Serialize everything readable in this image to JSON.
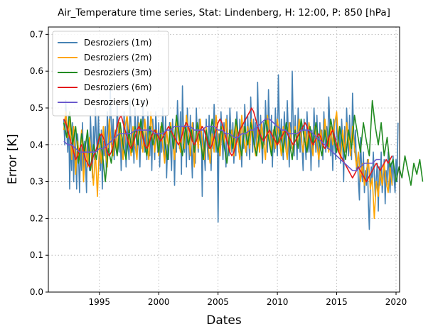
{
  "chart_data": {
    "type": "line",
    "title": "Air_Temperature time series, Stat: Lindenberg, H: 12:00, P: 850 [hPa]",
    "xlabel": "Dates",
    "ylabel": "Error [K]",
    "xlim": [
      1990.7,
      2020.3
    ],
    "ylim": [
      0.0,
      0.72
    ],
    "x_ticks": [
      1995,
      2000,
      2005,
      2010,
      2015,
      2020
    ],
    "y_ticks": [
      0.0,
      0.1,
      0.2,
      0.3,
      0.4,
      0.5,
      0.6,
      0.7
    ],
    "y_tick_labels": [
      "0.0",
      "0.1",
      "0.2",
      "0.3",
      "0.4",
      "0.5",
      "0.6",
      "0.7"
    ],
    "grid": true,
    "legend_position": "top-left",
    "series": [
      {
        "name": "Desroziers (1m)",
        "color": "#4682b4",
        "x_start": 1992.0,
        "x_step": 0.0833333,
        "values": [
          0.47,
          0.4,
          0.52,
          0.44,
          0.38,
          0.48,
          0.28,
          0.42,
          0.33,
          0.46,
          0.3,
          0.44,
          0.38,
          0.28,
          0.43,
          0.36,
          0.27,
          0.4,
          0.33,
          0.46,
          0.3,
          0.41,
          0.35,
          0.27,
          0.44,
          0.37,
          0.33,
          0.48,
          0.4,
          0.31,
          0.45,
          0.36,
          0.5,
          0.42,
          0.38,
          0.48,
          0.4,
          0.33,
          0.44,
          0.28,
          0.41,
          0.37,
          0.45,
          0.33,
          0.49,
          0.42,
          0.38,
          0.55,
          0.46,
          0.4,
          0.47,
          0.36,
          0.43,
          0.39,
          0.51,
          0.44,
          0.38,
          0.45,
          0.33,
          0.42,
          0.37,
          0.49,
          0.42,
          0.34,
          0.47,
          0.4,
          0.36,
          0.52,
          0.45,
          0.38,
          0.43,
          0.35,
          0.5,
          0.44,
          0.38,
          0.48,
          0.4,
          0.34,
          0.46,
          0.39,
          0.52,
          0.45,
          0.38,
          0.44,
          0.36,
          0.49,
          0.42,
          0.37,
          0.45,
          0.33,
          0.47,
          0.41,
          0.36,
          0.49,
          0.43,
          0.38,
          0.46,
          0.34,
          0.44,
          0.38,
          0.5,
          0.43,
          0.37,
          0.48,
          0.31,
          0.4,
          0.36,
          0.46,
          0.39,
          0.33,
          0.47,
          0.41,
          0.29,
          0.44,
          0.38,
          0.52,
          0.45,
          0.39,
          0.49,
          0.32,
          0.56,
          0.44,
          0.38,
          0.46,
          0.34,
          0.5,
          0.42,
          0.36,
          0.48,
          0.39,
          0.31,
          0.46,
          0.4,
          0.35,
          0.5,
          0.43,
          0.38,
          0.47,
          0.41,
          0.45,
          0.26,
          0.44,
          0.38,
          0.33,
          0.47,
          0.4,
          0.36,
          0.48,
          0.42,
          0.33,
          0.45,
          0.39,
          0.51,
          0.44,
          0.38,
          0.46,
          0.19,
          0.43,
          0.37,
          0.49,
          0.42,
          0.36,
          0.46,
          0.4,
          0.34,
          0.48,
          0.41,
          0.37,
          0.5,
          0.44,
          0.38,
          0.46,
          0.35,
          0.42,
          0.37,
          0.49,
          0.43,
          0.38,
          0.47,
          0.4,
          0.34,
          0.45,
          0.39,
          0.51,
          0.44,
          0.37,
          0.48,
          0.41,
          0.36,
          0.53,
          0.45,
          0.38,
          0.47,
          0.4,
          0.46,
          0.37,
          0.57,
          0.44,
          0.38,
          0.48,
          0.41,
          0.35,
          0.46,
          0.4,
          0.52,
          0.44,
          0.38,
          0.55,
          0.45,
          0.39,
          0.48,
          0.34,
          0.44,
          0.38,
          0.5,
          0.43,
          0.37,
          0.59,
          0.46,
          0.39,
          0.47,
          0.4,
          0.36,
          0.49,
          0.43,
          0.38,
          0.52,
          0.44,
          0.34,
          0.46,
          0.39,
          0.6,
          0.45,
          0.37,
          0.48,
          0.42,
          0.36,
          0.5,
          0.43,
          0.38,
          0.46,
          0.39,
          0.33,
          0.47,
          0.41,
          0.36,
          0.49,
          0.42,
          0.38,
          0.45,
          0.33,
          0.44,
          0.37,
          0.5,
          0.43,
          0.38,
          0.48,
          0.4,
          0.34,
          0.46,
          0.39,
          0.44,
          0.36,
          0.49,
          0.42,
          0.38,
          0.45,
          0.4,
          0.53,
          0.46,
          0.37,
          0.43,
          0.33,
          0.47,
          0.4,
          0.36,
          0.48,
          0.42,
          0.38,
          0.44,
          0.35,
          0.47,
          0.41,
          0.3,
          0.45,
          0.38,
          0.5,
          0.43,
          0.37,
          0.48,
          0.41,
          0.36,
          0.54,
          0.45,
          0.38,
          0.44,
          0.33,
          0.36,
          0.3,
          0.25,
          0.42,
          0.35,
          0.3,
          0.38,
          0.27,
          0.33,
          0.29,
          0.36,
          0.24,
          0.17,
          0.28,
          0.34,
          0.3,
          0.38,
          0.32,
          0.26,
          0.31,
          0.35,
          0.22,
          0.34,
          0.29,
          0.38,
          0.27,
          0.31,
          0.36,
          0.24,
          0.33,
          0.29,
          0.38,
          0.32,
          0.27,
          0.35,
          0.29,
          0.37,
          0.31,
          0.27,
          0.36,
          0.3,
          0.46
        ]
      },
      {
        "name": "Desroziers (2m)",
        "color": "#ffa500",
        "x_start": 1992.0,
        "x_step": 0.1666667,
        "values": [
          0.44,
          0.49,
          0.42,
          0.47,
          0.36,
          0.45,
          0.32,
          0.41,
          0.36,
          0.44,
          0.3,
          0.4,
          0.34,
          0.42,
          0.37,
          0.29,
          0.38,
          0.26,
          0.4,
          0.35,
          0.45,
          0.38,
          0.34,
          0.47,
          0.4,
          0.37,
          0.44,
          0.38,
          0.46,
          0.41,
          0.36,
          0.45,
          0.48,
          0.42,
          0.37,
          0.45,
          0.4,
          0.36,
          0.46,
          0.42,
          0.38,
          0.47,
          0.41,
          0.36,
          0.49,
          0.43,
          0.38,
          0.44,
          0.37,
          0.45,
          0.4,
          0.35,
          0.44,
          0.39,
          0.46,
          0.41,
          0.36,
          0.47,
          0.42,
          0.38,
          0.45,
          0.39,
          0.48,
          0.43,
          0.37,
          0.46,
          0.34,
          0.44,
          0.39,
          0.47,
          0.41,
          0.36,
          0.45,
          0.4,
          0.35,
          0.43,
          0.38,
          0.48,
          0.42,
          0.37,
          0.45,
          0.4,
          0.47,
          0.42,
          0.38,
          0.44,
          0.37,
          0.46,
          0.41,
          0.36,
          0.48,
          0.42,
          0.38,
          0.45,
          0.39,
          0.47,
          0.41,
          0.37,
          0.44,
          0.38,
          0.46,
          0.41,
          0.36,
          0.48,
          0.43,
          0.38,
          0.44,
          0.39,
          0.47,
          0.42,
          0.37,
          0.45,
          0.4,
          0.36,
          0.46,
          0.41,
          0.38,
          0.45,
          0.4,
          0.47,
          0.42,
          0.38,
          0.44,
          0.39,
          0.46,
          0.41,
          0.37,
          0.45,
          0.4,
          0.36,
          0.44,
          0.39,
          0.47,
          0.42,
          0.38,
          0.45,
          0.4,
          0.46,
          0.49,
          0.4,
          0.36,
          0.44,
          0.38,
          0.46,
          0.42,
          0.37,
          0.45,
          0.39,
          0.34,
          0.38,
          0.3,
          0.35,
          0.29,
          0.33,
          0.36,
          0.28,
          0.31,
          0.2,
          0.3,
          0.26,
          0.33,
          0.29,
          0.35,
          0.3,
          0.27,
          0.34,
          0.29
        ]
      },
      {
        "name": "Desroziers (3m)",
        "color": "#228b22",
        "x_start": 1992.0,
        "x_step": 0.25,
        "values": [
          0.46,
          0.42,
          0.49,
          0.4,
          0.45,
          0.35,
          0.43,
          0.38,
          0.44,
          0.33,
          0.4,
          0.36,
          0.43,
          0.38,
          0.3,
          0.39,
          0.35,
          0.42,
          0.37,
          0.46,
          0.4,
          0.36,
          0.44,
          0.38,
          0.45,
          0.4,
          0.47,
          0.41,
          0.37,
          0.45,
          0.4,
          0.44,
          0.38,
          0.46,
          0.41,
          0.36,
          0.45,
          0.39,
          0.48,
          0.42,
          0.37,
          0.45,
          0.4,
          0.44,
          0.38,
          0.46,
          0.41,
          0.36,
          0.44,
          0.39,
          0.47,
          0.42,
          0.38,
          0.45,
          0.4,
          0.35,
          0.44,
          0.39,
          0.47,
          0.42,
          0.37,
          0.45,
          0.4,
          0.46,
          0.41,
          0.37,
          0.44,
          0.39,
          0.47,
          0.42,
          0.37,
          0.45,
          0.4,
          0.44,
          0.38,
          0.46,
          0.41,
          0.36,
          0.44,
          0.39,
          0.47,
          0.42,
          0.38,
          0.45,
          0.4,
          0.46,
          0.41,
          0.37,
          0.44,
          0.39,
          0.47,
          0.42,
          0.38,
          0.45,
          0.4,
          0.36,
          0.44,
          0.39,
          0.48,
          0.43,
          0.38,
          0.46,
          0.41,
          0.37,
          0.52,
          0.45,
          0.4,
          0.46,
          0.37,
          0.42,
          0.34,
          0.36,
          0.3,
          0.34,
          0.31,
          0.37,
          0.33,
          0.29,
          0.35,
          0.32,
          0.36,
          0.3
        ]
      },
      {
        "name": "Desroziers (6m)",
        "color": "#e31a1c",
        "x_start": 1992.0,
        "x_step": 0.1666667,
        "values": [
          0.47,
          0.46,
          0.44,
          0.42,
          0.4,
          0.38,
          0.36,
          0.37,
          0.39,
          0.4,
          0.38,
          0.36,
          0.35,
          0.34,
          0.35,
          0.37,
          0.38,
          0.4,
          0.42,
          0.43,
          0.42,
          0.4,
          0.38,
          0.37,
          0.38,
          0.4,
          0.43,
          0.45,
          0.47,
          0.48,
          0.46,
          0.44,
          0.42,
          0.4,
          0.39,
          0.4,
          0.42,
          0.44,
          0.45,
          0.44,
          0.42,
          0.4,
          0.39,
          0.4,
          0.42,
          0.43,
          0.44,
          0.43,
          0.42,
          0.41,
          0.42,
          0.43,
          0.44,
          0.45,
          0.44,
          0.43,
          0.42,
          0.41,
          0.4,
          0.41,
          0.43,
          0.45,
          0.46,
          0.45,
          0.43,
          0.41,
          0.4,
          0.41,
          0.43,
          0.44,
          0.45,
          0.44,
          0.42,
          0.4,
          0.39,
          0.4,
          0.42,
          0.44,
          0.46,
          0.47,
          0.46,
          0.44,
          0.42,
          0.4,
          0.38,
          0.37,
          0.38,
          0.4,
          0.42,
          0.44,
          0.45,
          0.46,
          0.47,
          0.48,
          0.49,
          0.5,
          0.49,
          0.47,
          0.45,
          0.43,
          0.42,
          0.41,
          0.42,
          0.43,
          0.44,
          0.43,
          0.42,
          0.41,
          0.4,
          0.41,
          0.42,
          0.43,
          0.44,
          0.43,
          0.42,
          0.41,
          0.4,
          0.41,
          0.42,
          0.43,
          0.44,
          0.45,
          0.46,
          0.45,
          0.43,
          0.41,
          0.4,
          0.41,
          0.42,
          0.43,
          0.42,
          0.4,
          0.39,
          0.4,
          0.42,
          0.43,
          0.44,
          0.42,
          0.4,
          0.38,
          0.37,
          0.36,
          0.35,
          0.34,
          0.33,
          0.32,
          0.31,
          0.32,
          0.33,
          0.34,
          0.33,
          0.32,
          0.31,
          0.3,
          0.31,
          0.32,
          0.33,
          0.34,
          0.35,
          0.34,
          0.33,
          0.34,
          0.35,
          0.36,
          0.35,
          0.36,
          0.37
        ]
      },
      {
        "name": "Desroziers (1y)",
        "color": "#6a5acd",
        "x_start": 1992.0,
        "x_step": 0.3333333,
        "values": [
          0.41,
          0.4,
          0.4,
          0.39,
          0.38,
          0.38,
          0.38,
          0.38,
          0.38,
          0.39,
          0.39,
          0.4,
          0.41,
          0.42,
          0.43,
          0.43,
          0.43,
          0.43,
          0.44,
          0.44,
          0.44,
          0.44,
          0.44,
          0.43,
          0.43,
          0.43,
          0.44,
          0.44,
          0.45,
          0.45,
          0.45,
          0.45,
          0.45,
          0.44,
          0.44,
          0.44,
          0.45,
          0.45,
          0.45,
          0.44,
          0.44,
          0.43,
          0.43,
          0.42,
          0.42,
          0.43,
          0.43,
          0.44,
          0.44,
          0.45,
          0.46,
          0.47,
          0.47,
          0.46,
          0.45,
          0.44,
          0.44,
          0.43,
          0.43,
          0.43,
          0.44,
          0.44,
          0.44,
          0.43,
          0.42,
          0.41,
          0.4,
          0.39,
          0.38,
          0.37,
          0.36,
          0.35,
          0.34,
          0.33,
          0.33,
          0.34,
          0.35,
          0.35,
          0.35,
          0.36,
          0.36
        ]
      }
    ]
  }
}
